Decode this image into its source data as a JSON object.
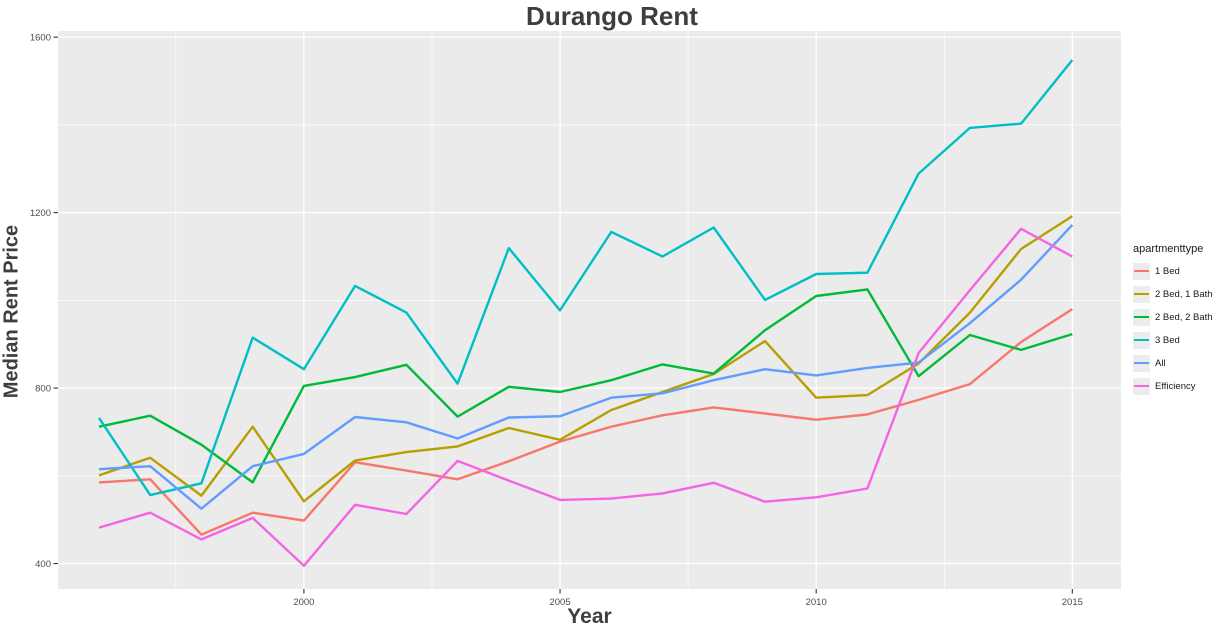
{
  "chart_data": {
    "type": "line",
    "title": "Durango Rent",
    "xlabel": "Year",
    "ylabel": "Median Rent Price",
    "legend_title": "apartmenttype",
    "legend_position": "right",
    "grid": true,
    "panel_bg": "#ebebeb",
    "grid_color": "#ffffff",
    "title_color": "#3e3e3e",
    "tick_text_color": "#4d4d4d",
    "x": [
      1996,
      1997,
      1998,
      1999,
      2000,
      2001,
      2002,
      2003,
      2004,
      2005,
      2006,
      2007,
      2008,
      2009,
      2010,
      2011,
      2012,
      2013,
      2014,
      2015
    ],
    "series": [
      {
        "name": "1 Bed",
        "color": "#F8766D",
        "values": [
          585,
          592,
          466,
          516,
          498,
          631,
          612,
          592,
          633,
          678,
          712,
          738,
          756,
          742,
          728,
          740,
          773,
          809,
          905,
          980
        ]
      },
      {
        "name": "2 Bed, 1 Bath",
        "color": "#B79F00",
        "values": [
          601,
          641,
          555,
          712,
          542,
          635,
          654,
          667,
          709,
          682,
          750,
          791,
          832,
          907,
          778,
          784,
          856,
          972,
          1117,
          1192
        ]
      },
      {
        "name": "2 Bed, 2 Bath",
        "color": "#00BA38",
        "values": [
          712,
          737,
          671,
          585,
          805,
          825,
          853,
          735,
          803,
          791,
          818,
          854,
          833,
          932,
          1010,
          1025,
          827,
          921,
          887,
          923
        ]
      },
      {
        "name": "3 Bed",
        "color": "#00BFC4",
        "values": [
          732,
          556,
          583,
          915,
          843,
          1033,
          972,
          810,
          1119,
          977,
          1156,
          1100,
          1166,
          1001,
          1060,
          1063,
          1289,
          1393,
          1403,
          1548
        ]
      },
      {
        "name": "All",
        "color": "#619CFF",
        "values": [
          615,
          622,
          525,
          622,
          650,
          734,
          722,
          685,
          733,
          736,
          778,
          788,
          818,
          843,
          829,
          846,
          858,
          948,
          1047,
          1172
        ]
      },
      {
        "name": "Efficiency",
        "color": "#F564E3",
        "values": [
          482,
          516,
          455,
          504,
          395,
          534,
          513,
          634,
          589,
          545,
          548,
          560,
          584,
          541,
          551,
          571,
          880,
          1023,
          1163,
          1100
        ]
      }
    ],
    "x_ticks": {
      "major": [
        2000,
        2005,
        2010,
        2015
      ],
      "minor": [
        1997.5,
        2002.5,
        2007.5,
        2012.5
      ]
    },
    "y_ticks": {
      "major": [
        400,
        800,
        1200,
        1600
      ],
      "minor": [
        600,
        1000,
        1400
      ]
    },
    "x_tick_labels": [
      "2000",
      "2005",
      "2010",
      "2015"
    ],
    "y_tick_labels": [
      "400",
      "800",
      "1200",
      "1600"
    ],
    "xlim": [
      1995.2,
      2015.95
    ],
    "ylim": [
      342,
      1614
    ]
  }
}
